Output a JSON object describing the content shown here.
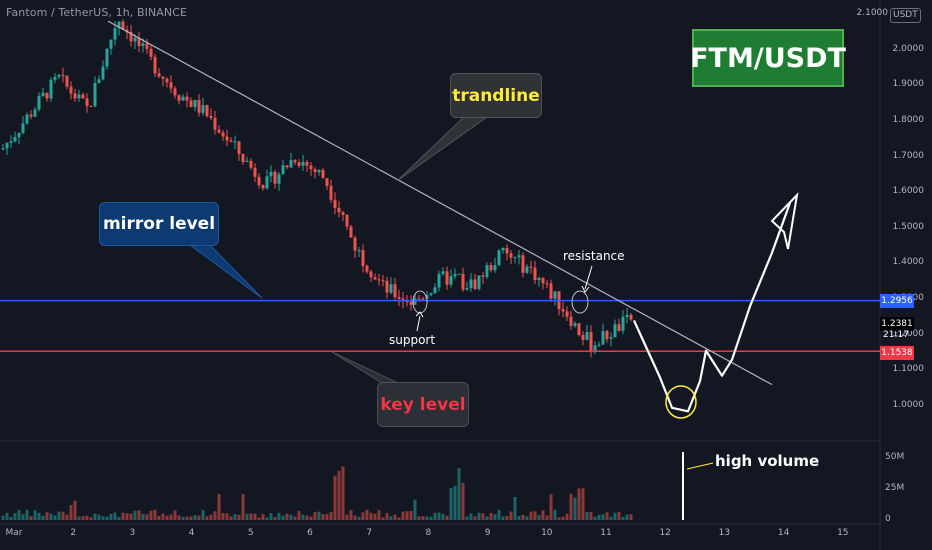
{
  "header": {
    "ticker": "Fantom / TetherUS, 1h, BINANCE",
    "title": "FTM/USDT"
  },
  "annotations": {
    "trendline": "trandline",
    "mirror_level": "mirror level",
    "key_level": "key level",
    "support": "support",
    "resistance": "resistance",
    "high_volume": "high volume"
  },
  "price_axis": {
    "currency": "USDT",
    "ticks": [
      "2.1000",
      "2.0000",
      "1.9000",
      "1.8000",
      "1.7000",
      "1.6000",
      "1.5000",
      "1.4000",
      "1.3000",
      "1.2000",
      "1.1000",
      "1.0000"
    ],
    "price_labels": [
      {
        "value": "1.2956",
        "color": "#2962ff"
      },
      {
        "value": "1.2381",
        "color": "#000000"
      },
      {
        "value": "1.1538",
        "color": "#f23645"
      }
    ],
    "countdown": "21:17"
  },
  "volume_axis": {
    "ticks": [
      "50M",
      "25M",
      "0"
    ]
  },
  "time_axis": {
    "ticks": [
      "Mar",
      "2",
      "3",
      "4",
      "5",
      "6",
      "7",
      "8",
      "9",
      "10",
      "11",
      "12",
      "13",
      "14",
      "15"
    ]
  },
  "colors": {
    "background": "#131722",
    "up": "#26a69a",
    "down": "#ef5350",
    "mirror_line": "#2962ff",
    "key_line": "#f23645",
    "trendline": "#b2b5be",
    "badge": "#1e7d32"
  },
  "chart_data": {
    "type": "candlestick",
    "symbol": "FTMUSDT",
    "interval": "1h",
    "exchange": "BINANCE",
    "ylim": [
      0.93,
      2.13
    ],
    "x_range": [
      "Mar 1",
      "Mar 15"
    ],
    "key_points": [
      {
        "x": "Mar 1",
        "price": 1.72
      },
      {
        "x": "Mar 1",
        "price": 1.88
      },
      {
        "x": "Mar 2",
        "price": 1.92
      },
      {
        "x": "Mar 2",
        "price": 1.83
      },
      {
        "x": "Mar 3",
        "price": 2.09
      },
      {
        "x": "Mar 3",
        "price": 1.98
      },
      {
        "x": "Mar 4",
        "price": 1.88
      },
      {
        "x": "Mar 4",
        "price": 1.82
      },
      {
        "x": "Mar 5",
        "price": 1.72
      },
      {
        "x": "Mar 5",
        "price": 1.62
      },
      {
        "x": "Mar 6",
        "price": 1.7
      },
      {
        "x": "Mar 6",
        "price": 1.64
      },
      {
        "x": "Mar 7",
        "price": 1.45
      },
      {
        "x": "Mar 7",
        "price": 1.33
      },
      {
        "x": "Mar 8",
        "price": 1.29
      },
      {
        "x": "Mar 8",
        "price": 1.36
      },
      {
        "x": "Mar 9",
        "price": 1.34
      },
      {
        "x": "Mar 9",
        "price": 1.43
      },
      {
        "x": "Mar 10",
        "price": 1.38
      },
      {
        "x": "Mar 10",
        "price": 1.28
      },
      {
        "x": "Mar 11",
        "price": 1.17
      },
      {
        "x": "Mar 11",
        "price": 1.25
      }
    ],
    "horizontal_levels": [
      {
        "name": "mirror level",
        "price": 1.2956
      },
      {
        "name": "key level",
        "price": 1.1538
      }
    ],
    "trendline": {
      "from": {
        "x": "Mar 2",
        "price": 2.08
      },
      "to": {
        "x": "Mar 14",
        "price": 1.06
      }
    },
    "projection": [
      {
        "x": "Mar 11",
        "price": 1.24
      },
      {
        "x": "Mar 12",
        "price": 1.07
      },
      {
        "x": "Mar 12",
        "price": 0.98
      },
      {
        "x": "Mar 12",
        "price": 1.09
      },
      {
        "x": "Mar 13",
        "price": 1.16
      },
      {
        "x": "Mar 13",
        "price": 1.08
      },
      {
        "x": "Mar 13",
        "price": 1.18
      },
      {
        "x": "Mar 14",
        "price": 1.38
      },
      {
        "x": "Mar 14",
        "price": 1.57
      }
    ],
    "volume_ylim": [
      0,
      50
    ],
    "volume_unit": "M",
    "volume_spikes": [
      {
        "x": "Mar 6",
        "value": 50
      },
      {
        "x": "Mar 8",
        "value": 30
      },
      {
        "x": "Mar 10",
        "value": 25
      }
    ]
  }
}
